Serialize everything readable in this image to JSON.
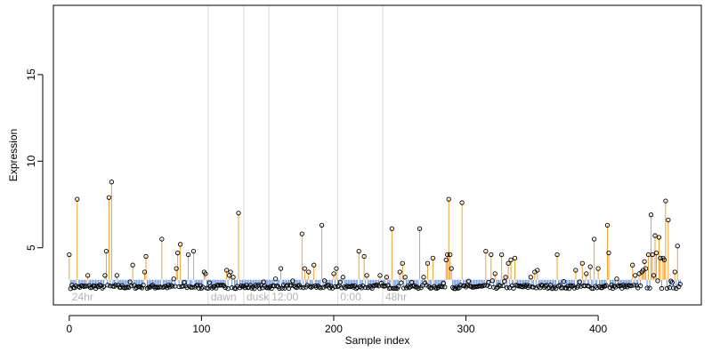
{
  "chart_data": {
    "type": "scatter",
    "title": "",
    "xlabel": "Sample index",
    "ylabel": "Expression",
    "xlim": [
      -12,
      478
    ],
    "ylim": [
      1.7,
      19.0
    ],
    "x_ticks": [
      0,
      100,
      200,
      300,
      400
    ],
    "y_ticks": [
      5,
      10,
      15
    ],
    "baseline": 2.75,
    "threshold": 3.15,
    "grid": false,
    "legend": "none",
    "colors": {
      "point_stroke": "#000000",
      "stem_above": "#f0a030",
      "stem_below": "#6f95d8",
      "divider": "#d9d9d9",
      "region_label": "#b3b3b3",
      "axis": "#000000"
    },
    "regions": [
      {
        "label": "24hr",
        "start": 0
      },
      {
        "label": "dawn",
        "start": 105
      },
      {
        "label": "dusk",
        "start": 132
      },
      {
        "label": "12:00",
        "start": 151
      },
      {
        "label": "0:00",
        "start": 203
      },
      {
        "label": "48hr",
        "start": 237
      }
    ],
    "region_dividers": [
      105,
      132,
      151,
      203,
      237
    ],
    "peaks": [
      [
        0,
        4.6
      ],
      [
        6,
        7.8
      ],
      [
        14,
        3.4
      ],
      [
        27,
        3.4
      ],
      [
        28,
        4.8
      ],
      [
        30,
        7.9
      ],
      [
        32,
        8.8
      ],
      [
        36,
        3.4
      ],
      [
        48,
        4.0
      ],
      [
        57,
        3.6
      ],
      [
        58,
        4.5
      ],
      [
        70,
        5.5
      ],
      [
        79,
        3.2
      ],
      [
        81,
        3.8
      ],
      [
        82,
        4.7
      ],
      [
        84,
        5.2
      ],
      [
        90,
        4.6
      ],
      [
        94,
        4.8
      ],
      [
        102,
        3.6
      ],
      [
        103,
        3.5
      ],
      [
        119,
        3.7
      ],
      [
        121,
        3.4
      ],
      [
        122,
        3.6
      ],
      [
        124,
        3.3
      ],
      [
        128,
        7.0
      ],
      [
        156,
        3.2
      ],
      [
        160,
        3.8
      ],
      [
        176,
        5.8
      ],
      [
        178,
        3.8
      ],
      [
        181,
        3.6
      ],
      [
        185,
        4.0
      ],
      [
        191,
        6.3
      ],
      [
        200,
        3.5
      ],
      [
        202,
        3.8
      ],
      [
        207,
        3.3
      ],
      [
        219,
        4.8
      ],
      [
        223,
        4.5
      ],
      [
        225,
        3.4
      ],
      [
        235,
        3.4
      ],
      [
        240,
        3.3
      ],
      [
        244,
        6.1
      ],
      [
        250,
        3.6
      ],
      [
        252,
        4.1
      ],
      [
        254,
        3.3
      ],
      [
        265,
        6.1
      ],
      [
        268,
        3.3
      ],
      [
        271,
        4.1
      ],
      [
        275,
        4.4
      ],
      [
        285,
        4.3
      ],
      [
        286,
        4.6
      ],
      [
        287,
        7.8
      ],
      [
        288,
        4.6
      ],
      [
        289,
        3.8
      ],
      [
        297,
        7.6
      ],
      [
        315,
        4.8
      ],
      [
        319,
        4.6
      ],
      [
        322,
        3.5
      ],
      [
        327,
        4.6
      ],
      [
        330,
        3.3
      ],
      [
        332,
        4.1
      ],
      [
        334,
        4.3
      ],
      [
        337,
        4.4
      ],
      [
        349,
        3.3
      ],
      [
        352,
        3.6
      ],
      [
        354,
        3.7
      ],
      [
        369,
        4.6
      ],
      [
        383,
        3.7
      ],
      [
        388,
        4.1
      ],
      [
        391,
        3.5
      ],
      [
        394,
        3.9
      ],
      [
        397,
        5.5
      ],
      [
        400,
        3.8
      ],
      [
        407,
        6.3
      ],
      [
        408,
        4.7
      ],
      [
        414,
        3.2
      ],
      [
        426,
        4.0
      ],
      [
        428,
        3.4
      ],
      [
        431,
        3.5
      ],
      [
        433,
        3.6
      ],
      [
        434,
        3.7
      ],
      [
        435,
        4.2
      ],
      [
        436,
        3.8
      ],
      [
        438,
        4.6
      ],
      [
        440,
        6.9
      ],
      [
        441,
        4.6
      ],
      [
        442,
        3.4
      ],
      [
        443,
        5.7
      ],
      [
        444,
        4.7
      ],
      [
        446,
        5.6
      ],
      [
        447,
        4.4
      ],
      [
        449,
        4.4
      ],
      [
        450,
        4.3
      ],
      [
        451,
        7.7
      ],
      [
        453,
        6.6
      ],
      [
        458,
        3.6
      ],
      [
        460,
        5.1
      ],
      [
        462,
        2.9
      ]
    ],
    "n_points": 463
  }
}
